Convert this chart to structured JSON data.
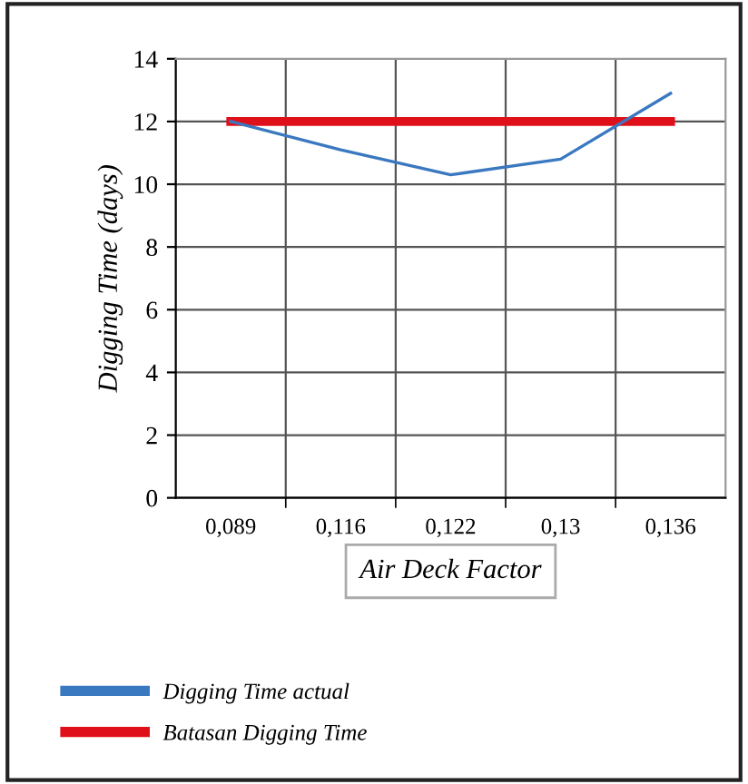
{
  "chart_data": {
    "type": "line",
    "xlabel": "Air Deck Factor",
    "ylabel": "Digging Time (days)",
    "categories": [
      "0,089",
      "0,116",
      "0,122",
      "0,13",
      "0,136"
    ],
    "series": [
      {
        "name": "Digging Time actual",
        "color": "#3a78c0",
        "values": [
          12,
          11.1,
          10.3,
          10.8,
          12.9
        ]
      },
      {
        "name": "Batasan Digging Time",
        "color": "#e0101a",
        "values": [
          12,
          12,
          12,
          12,
          12
        ]
      }
    ],
    "ylim": [
      0,
      14
    ],
    "yticks": [
      0,
      2,
      4,
      6,
      8,
      10,
      12,
      14
    ],
    "grid": true,
    "legend": "bottom",
    "marker": "none",
    "line_style": "solid"
  }
}
